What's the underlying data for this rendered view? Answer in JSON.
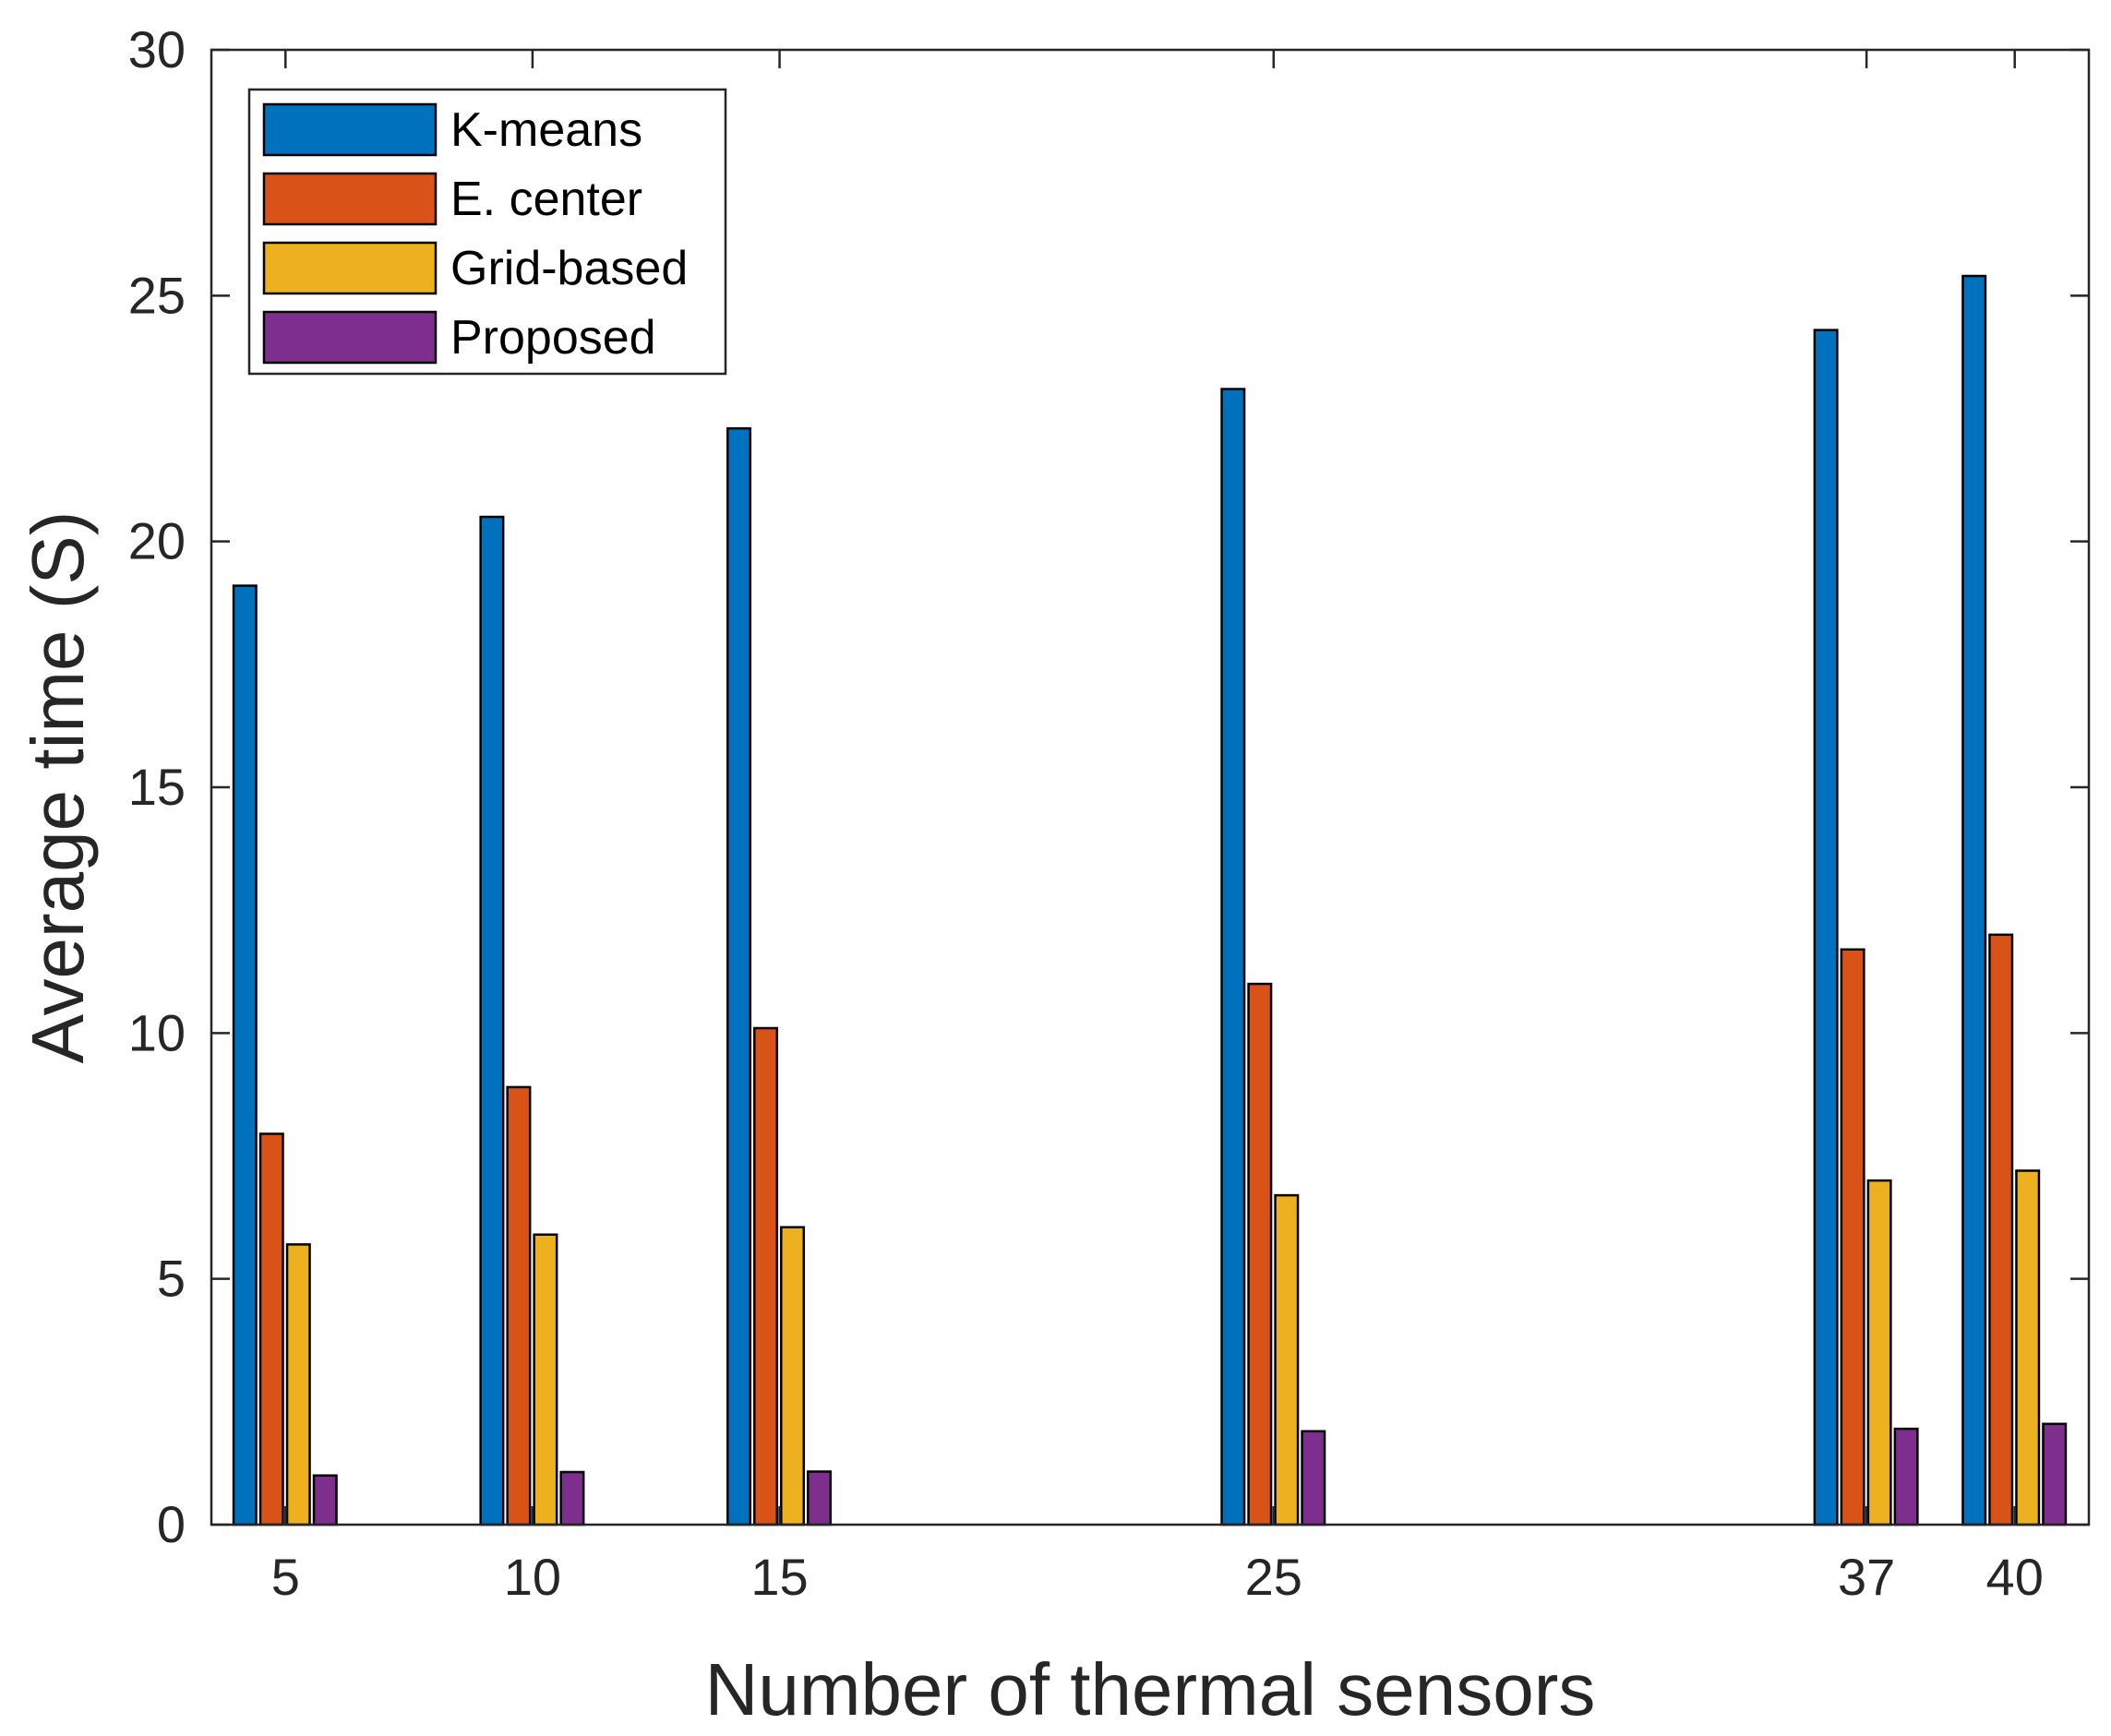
{
  "chart_data": {
    "type": "bar",
    "title": "",
    "xlabel": "Number of thermal sensors",
    "ylabel": "Average time (S)",
    "x": [
      5,
      10,
      15,
      25,
      37,
      40
    ],
    "x_tick_labels": [
      "5",
      "10",
      "15",
      "25",
      "37",
      "40"
    ],
    "xlim": [
      3.5,
      41.5
    ],
    "ylim": [
      0,
      30
    ],
    "y_ticks": [
      0,
      5,
      10,
      15,
      20,
      25,
      30
    ],
    "y_tick_labels": [
      "0",
      "5",
      "10",
      "15",
      "20",
      "25",
      "30"
    ],
    "grid": false,
    "legend_position": "top-left",
    "series": [
      {
        "name": "K-means",
        "color": "#0072BD",
        "values": [
          19.1,
          20.5,
          22.3,
          23.1,
          24.3,
          25.4
        ]
      },
      {
        "name": "E. center",
        "color": "#D95319",
        "values": [
          7.95,
          8.9,
          10.1,
          11.0,
          11.7,
          12.0
        ]
      },
      {
        "name": "Grid-based",
        "color": "#EDB120",
        "values": [
          5.7,
          5.9,
          6.05,
          6.7,
          7.0,
          7.2
        ]
      },
      {
        "name": "Proposed",
        "color": "#7E2F8E",
        "values": [
          1.0,
          1.07,
          1.08,
          1.9,
          1.95,
          2.05
        ]
      }
    ]
  }
}
